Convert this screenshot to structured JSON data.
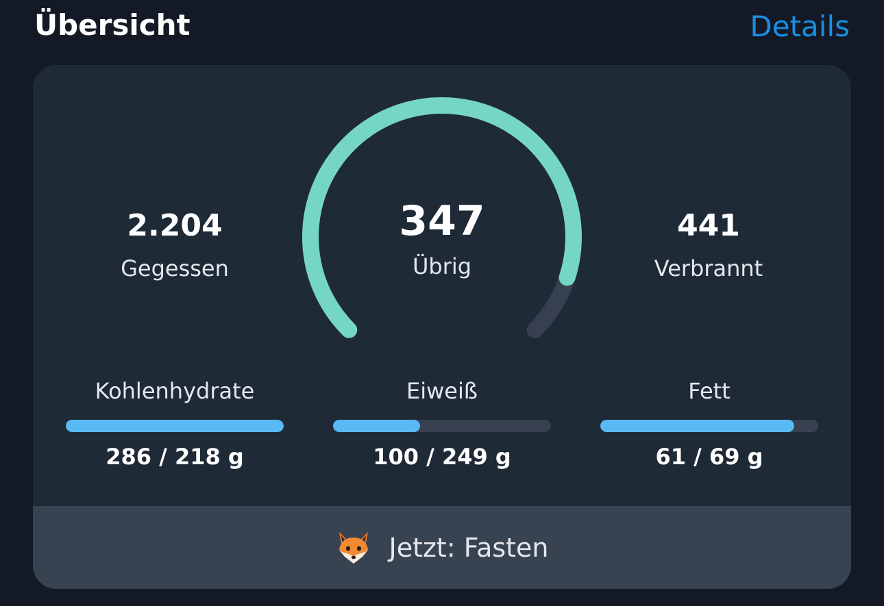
{
  "header": {
    "title": "Übersicht",
    "details_link": "Details"
  },
  "summary": {
    "eaten": {
      "value": "2.204",
      "label": "Gegessen"
    },
    "remaining": {
      "value": "347",
      "label": "Übrig",
      "progress_fraction": 0.9
    },
    "burned": {
      "value": "441",
      "label": "Verbrannt"
    }
  },
  "macros": [
    {
      "label": "Kohlenhydrate",
      "amount": "286 / 218 g",
      "fill_fraction": 1.0
    },
    {
      "label": "Eiweiß",
      "amount": "100 / 249 g",
      "fill_fraction": 0.4
    },
    {
      "label": "Fett",
      "amount": "61 / 69 g",
      "fill_fraction": 0.89
    }
  ],
  "footer": {
    "icon": "fox-face-icon",
    "text": "Jetzt: Fasten"
  },
  "colors": {
    "background": "#131a26",
    "card": "#1f2a37",
    "footer": "#384352",
    "accent_link": "#1a8fe3",
    "gauge_progress": "#76d6c4",
    "gauge_track": "#364050",
    "macro_fill": "#58b9f5",
    "macro_track": "#374150"
  }
}
